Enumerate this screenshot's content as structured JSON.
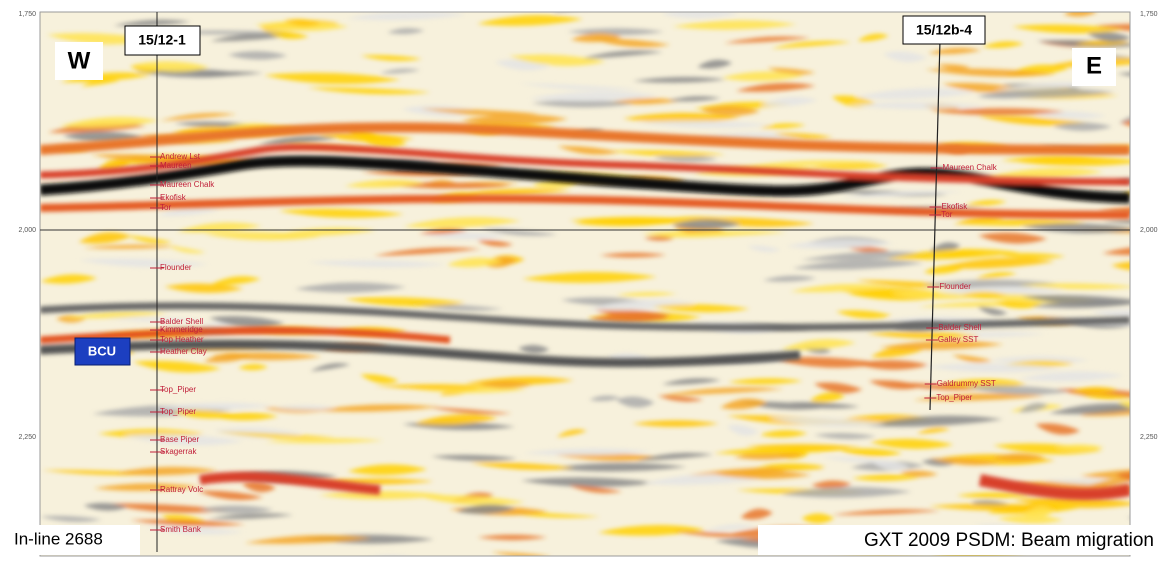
{
  "header": {
    "west_well": "15/12-1",
    "east_well": "15/12b-4",
    "west": "W",
    "east": "E"
  },
  "marker": "BCU",
  "axis": {
    "left": [
      "1,750",
      "2,000",
      "2,250"
    ],
    "right": [
      "1,750",
      "2,000",
      "2,250"
    ]
  },
  "west_tops": [
    "Andrew Lst",
    "Maureen",
    "Maureen Chalk",
    "Ekofisk",
    "Tor",
    "Flounder",
    "Balder Shell",
    "Kimmeridge",
    "Top Heather",
    "Heather Clay",
    "Top_Piper",
    "Top_Piper",
    "Base Piper",
    "Skagerrak",
    "Rattray Volc",
    "Smith Bank"
  ],
  "east_tops": [
    "Maureen Chalk",
    "Ekofisk",
    "Tor",
    "Flounder",
    "Balder Shell",
    "Galley SST",
    "Galdrummy SST",
    "Top_Piper"
  ],
  "footer": {
    "inline": "In-line 2688",
    "processing": "GXT 2009 PSDM: Beam migration"
  }
}
